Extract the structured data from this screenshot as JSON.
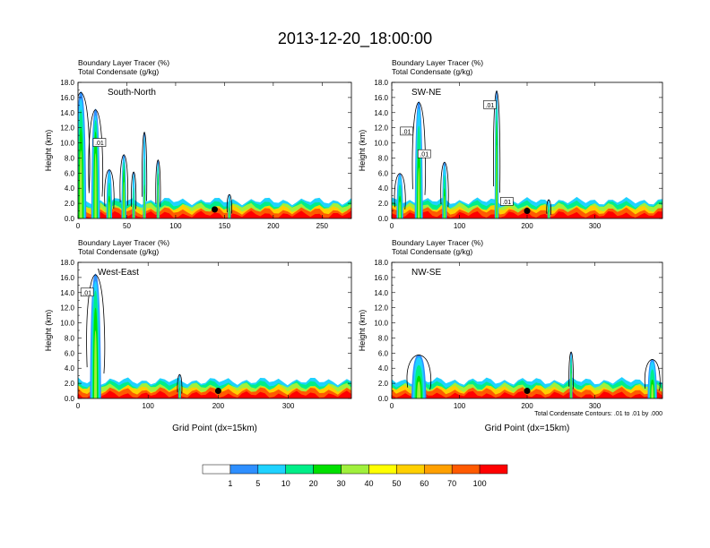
{
  "chart_data": {
    "type": "heatmap",
    "title": "2013-12-20_18:00:00",
    "panels": [
      {
        "id": "south-north",
        "cross_section": "South-North",
        "field_labels": [
          "Boundary Layer Tracer    (%)",
          "Total Condensate    (g/kg)"
        ],
        "ylabel": "Height (km)",
        "xlabel": "",
        "xlim": [
          0,
          280
        ],
        "ylim": [
          0,
          18
        ],
        "xticks": [
          0,
          50,
          100,
          150,
          200,
          250
        ],
        "yticks": [
          "0.0",
          "2.0",
          "4.0",
          "6.0",
          "8.0",
          "10.0",
          "12.0",
          "14.0",
          "16.0",
          "18.0"
        ],
        "contour_labels": [
          {
            "text": ".01",
            "x": 22,
            "y": 10
          }
        ],
        "marker": {
          "x": 140,
          "y": 1.2
        },
        "plumes": [
          {
            "x": 3,
            "w": 11,
            "top": 16.8,
            "core_top": 12
          },
          {
            "x": 18,
            "w": 9,
            "top": 14.5,
            "core_top": 11.5
          },
          {
            "x": 32,
            "w": 6,
            "top": 6.5,
            "core_top": 3
          },
          {
            "x": 47,
            "w": 5,
            "top": 8.5,
            "core_top": 6.5
          },
          {
            "x": 57,
            "w": 3,
            "top": 6.2,
            "core_top": 2
          },
          {
            "x": 68,
            "w": 3,
            "top": 11.5,
            "core_top": 4.5
          },
          {
            "x": 82,
            "w": 3,
            "top": 7.8,
            "core_top": 6
          },
          {
            "x": 155,
            "w": 3,
            "top": 3.2,
            "core_top": 1.5
          }
        ]
      },
      {
        "id": "sw-ne",
        "cross_section": "SW-NE",
        "field_labels": [
          "Boundary Layer Tracer    (%)",
          "Total Condensate    (g/kg)"
        ],
        "ylabel": "Height (km)",
        "xlabel": "",
        "xlim": [
          0,
          400
        ],
        "ylim": [
          0,
          18
        ],
        "xticks": [
          0,
          100,
          200,
          300
        ],
        "yticks": [
          "0.0",
          "2.0",
          "4.0",
          "6.0",
          "8.0",
          "10.0",
          "12.0",
          "14.0",
          "16.0",
          "18.0"
        ],
        "contour_labels": [
          {
            "text": ".01",
            "x": 145,
            "y": 15
          },
          {
            "text": ".01",
            "x": 22,
            "y": 11.5
          },
          {
            "text": ".01",
            "x": 48,
            "y": 8.5
          },
          {
            "text": ".01",
            "x": 170,
            "y": 2.2
          }
        ],
        "marker": {
          "x": 200,
          "y": 1.0
        },
        "plumes": [
          {
            "x": 12,
            "w": 10,
            "top": 6.0,
            "core_top": 3
          },
          {
            "x": 40,
            "w": 12,
            "top": 15.5,
            "core_top": 9
          },
          {
            "x": 78,
            "w": 7,
            "top": 7.5,
            "core_top": 4
          },
          {
            "x": 155,
            "w": 6,
            "top": 17.0,
            "core_top": 13
          },
          {
            "x": 232,
            "w": 4,
            "top": 2.5,
            "core_top": 1.2
          }
        ]
      },
      {
        "id": "west-east",
        "cross_section": "West-East",
        "field_labels": [
          "Boundary Layer Tracer    (%)",
          "Total Condensate    (g/kg)"
        ],
        "ylabel": "Height (km)",
        "xlabel": "Grid Point (dx=15km)",
        "xlim": [
          0,
          390
        ],
        "ylim": [
          0,
          18
        ],
        "xticks": [
          0,
          100,
          200,
          300
        ],
        "yticks": [
          "0.0",
          "2.0",
          "4.0",
          "6.0",
          "8.0",
          "10.0",
          "12.0",
          "14.0",
          "16.0",
          "18.0"
        ],
        "contour_labels": [
          {
            "text": ".01",
            "x": 13,
            "y": 14
          }
        ],
        "marker": {
          "x": 200,
          "y": 1.0
        },
        "plumes": [
          {
            "x": 25,
            "w": 16,
            "top": 16.5,
            "core_top": 12
          },
          {
            "x": 145,
            "w": 4,
            "top": 3.2,
            "core_top": 1.5
          }
        ]
      },
      {
        "id": "nw-se",
        "cross_section": "NW-SE",
        "field_labels": [
          "Boundary Layer Tracer    (%)",
          "Total Condensate    (g/kg)"
        ],
        "ylabel": "Height (km)",
        "xlabel": "Grid Point (dx=15km)",
        "xlim": [
          0,
          400
        ],
        "ylim": [
          0,
          18
        ],
        "xticks": [
          0,
          100,
          200,
          300
        ],
        "yticks": [
          "0.0",
          "2.0",
          "4.0",
          "6.0",
          "8.0",
          "10.0",
          "12.0",
          "14.0",
          "16.0",
          "18.0"
        ],
        "contour_labels": [],
        "marker": {
          "x": 200,
          "y": 1.0
        },
        "annotation": "Total Condensate Contours: .01 to .01 by .000",
        "plumes": [
          {
            "x": 40,
            "w": 22,
            "top": 5.8,
            "core_top": 3
          },
          {
            "x": 265,
            "w": 4,
            "top": 6.2,
            "core_top": 4.5
          },
          {
            "x": 385,
            "w": 14,
            "top": 5.2,
            "core_top": 2.5
          }
        ]
      }
    ],
    "colorbar": {
      "labels": [
        "1",
        "5",
        "10",
        "20",
        "30",
        "40",
        "50",
        "60",
        "70",
        "100"
      ],
      "colors": [
        "#ffffff",
        "#2e8fff",
        "#1fd2ff",
        "#00ee88",
        "#00e000",
        "#a0f03c",
        "#ffff00",
        "#ffd000",
        "#ffa000",
        "#ff5a00",
        "#ff0000"
      ]
    }
  }
}
